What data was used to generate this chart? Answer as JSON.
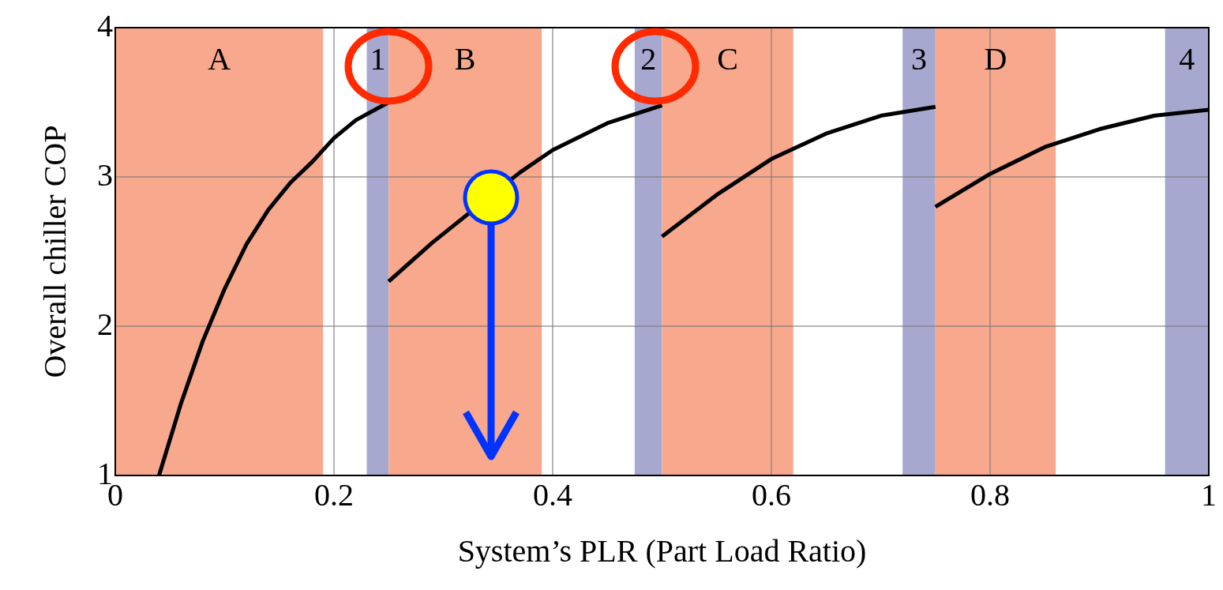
{
  "chart_data": {
    "type": "line",
    "xlabel": "System’s PLR (Part Load Ratio)",
    "ylabel": "Overall chiller COP",
    "xlim": [
      0,
      1
    ],
    "ylim": [
      1,
      4
    ],
    "xticks": [
      0,
      0.2,
      0.4,
      0.6,
      0.8,
      1
    ],
    "yticks": [
      1,
      2,
      3,
      4
    ],
    "grid": true,
    "marker": "none",
    "line_style": "solid",
    "series": [
      {
        "color": "#000000",
        "x": [
          0.04,
          0.06,
          0.08,
          0.1,
          0.12,
          0.14,
          0.16,
          0.18,
          0.2,
          0.22,
          0.25
        ],
        "values": [
          1.0,
          1.48,
          1.9,
          2.25,
          2.55,
          2.78,
          2.96,
          3.1,
          3.26,
          3.38,
          3.5
        ]
      },
      {
        "color": "#000000",
        "x": [
          0.25,
          0.29,
          0.37,
          0.4,
          0.45,
          0.5
        ],
        "values": [
          2.3,
          2.56,
          3.03,
          3.18,
          3.36,
          3.48
        ]
      },
      {
        "color": "#000000",
        "x": [
          0.5,
          0.55,
          0.6,
          0.65,
          0.7,
          0.75
        ],
        "values": [
          2.6,
          2.88,
          3.12,
          3.29,
          3.41,
          3.47
        ]
      },
      {
        "color": "#000000",
        "x": [
          0.75,
          0.8,
          0.85,
          0.9,
          0.95,
          1.0
        ],
        "values": [
          2.8,
          3.02,
          3.2,
          3.32,
          3.41,
          3.45
        ]
      }
    ],
    "bands": [
      {
        "axis": "x",
        "from": 0,
        "to": 0.19,
        "label": "A",
        "color": "#f8a88c"
      },
      {
        "axis": "x",
        "from": 0.23,
        "to": 0.25,
        "label": "1",
        "color": "#a6a8d0"
      },
      {
        "axis": "x",
        "from": 0.25,
        "to": 0.39,
        "label": "B",
        "color": "#f8a88c"
      },
      {
        "axis": "x",
        "from": 0.475,
        "to": 0.5,
        "label": "2",
        "color": "#a6a8d0"
      },
      {
        "axis": "x",
        "from": 0.5,
        "to": 0.62,
        "label": "C",
        "color": "#f8a88c"
      },
      {
        "axis": "x",
        "from": 0.72,
        "to": 0.75,
        "label": "3",
        "color": "#a6a8d0"
      },
      {
        "axis": "x",
        "from": 0.75,
        "to": 0.86,
        "label": "D",
        "color": "#f8a88c"
      },
      {
        "axis": "x",
        "from": 0.96,
        "to": 1,
        "label": "4",
        "color": "#a6a8d0"
      }
    ]
  }
}
